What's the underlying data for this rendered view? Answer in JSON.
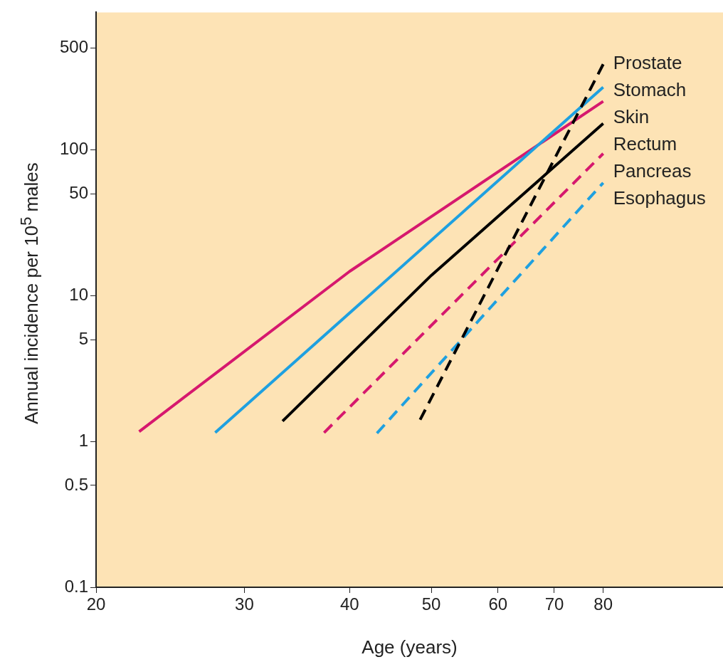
{
  "chart_data": {
    "type": "line",
    "xlabel": "Age (years)",
    "ylabel": "Annual incidence per 10$^{5}$ males",
    "log": "xy",
    "marker": "none",
    "xlim": [
      20,
      111
    ],
    "ylim": [
      0.1,
      880
    ],
    "xticks": [
      20,
      30,
      40,
      50,
      60,
      70,
      80
    ],
    "yticks": [
      0.1,
      0.5,
      1,
      5,
      10,
      50,
      100,
      500
    ],
    "series": [
      {
        "name": "Prostate",
        "color": "#000000",
        "line_style": "dashed",
        "x": [
          48.5,
          80
        ],
        "values": [
          1.41,
          388
        ]
      },
      {
        "name": "Stomach",
        "color": "#1ea0e0",
        "line_style": "solid",
        "x": [
          27.7,
          80
        ],
        "values": [
          1.15,
          270
        ]
      },
      {
        "name": "Skin",
        "color": "#d6186e",
        "line_style": "solid",
        "x": [
          22.5,
          40,
          80
        ],
        "values": [
          1.17,
          14.7,
          216
        ]
      },
      {
        "name": "Rectum",
        "color": "#000000",
        "line_style": "solid",
        "x": [
          33.3,
          50,
          80
        ],
        "values": [
          1.38,
          13.8,
          152
        ]
      },
      {
        "name": "Pancreas",
        "color": "#d6186e",
        "line_style": "dashed",
        "x": [
          37.3,
          80
        ],
        "values": [
          1.15,
          94.6
        ]
      },
      {
        "name": "Esophagus",
        "color": "#1ea0e0",
        "line_style": "dashed",
        "x": [
          43.1,
          80
        ],
        "values": [
          1.14,
          59.6
        ]
      }
    ]
  }
}
